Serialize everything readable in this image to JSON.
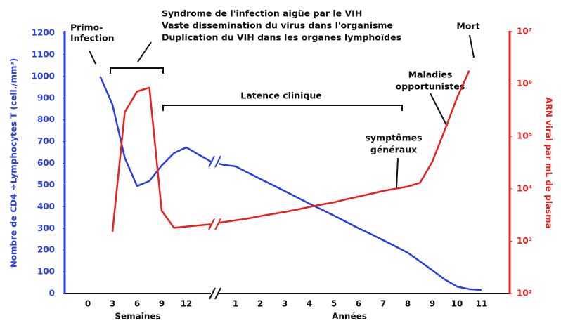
{
  "chart_data": {
    "type": "line",
    "title": [
      "Syndrome de l'infection aigüe par le VIH",
      "Vaste dissemination du virus dans l'organisme",
      "Duplication du VIH dans les organes lymphoïdes"
    ],
    "y_label": "Nombre de CD4 +Lymphocytes T (cell./mm³)",
    "y2_label": "ARN viral par mL de plasma",
    "x_group_labels": [
      "Semaines",
      "Années"
    ],
    "annotations": {
      "primo": [
        "Primo-",
        "Infection"
      ],
      "latence": "Latence clinique",
      "maladies": [
        "Maladies",
        "opportunistes"
      ],
      "symptomes": [
        "symptômes",
        "généraux"
      ],
      "mort": "Mort"
    },
    "categories": [
      "0",
      null,
      "3",
      null,
      "6",
      null,
      "9",
      null,
      "12",
      null,
      null,
      null,
      "1",
      null,
      "2",
      null,
      "3",
      null,
      "4",
      null,
      "5",
      null,
      "6",
      null,
      "7",
      null,
      "8",
      null,
      "9",
      null,
      "10",
      null,
      "11"
    ],
    "ylim": [
      0,
      1200
    ],
    "yticks": [
      0,
      100,
      200,
      300,
      400,
      500,
      600,
      700,
      800,
      900,
      1000,
      1100,
      1200
    ],
    "y2lim": [
      100,
      10000000
    ],
    "y2log": true,
    "y2ticks": [
      {
        "value": 100,
        "label": "10²"
      },
      {
        "value": 1000,
        "label": "10³"
      },
      {
        "value": 10000,
        "label": "10⁴"
      },
      {
        "value": 100000,
        "label": "10⁵"
      },
      {
        "value": 1000000,
        "label": "10⁶"
      },
      {
        "value": 10000000,
        "label": "10⁷"
      }
    ],
    "series": [
      {
        "name": "CD4",
        "color": "#2b3fe0",
        "axis": "y",
        "values": [
          null,
          1000,
          870,
          625,
          495,
          518,
          590,
          647,
          673,
          640,
          608,
          593,
          586,
          557,
          528,
          500,
          472,
          443,
          414,
          387,
          359,
          330,
          301,
          274,
          246,
          217,
          188,
          148,
          107,
          65,
          32,
          20,
          16
        ]
      },
      {
        "name": "ARN viral",
        "color": "#e8201e",
        "axis": "y2",
        "values": [
          null,
          null,
          1500,
          290000,
          720000,
          850000,
          3800,
          1800,
          1900,
          2000,
          2100,
          2300,
          2500,
          2700,
          3000,
          3300,
          3600,
          4000,
          4500,
          5000,
          5500,
          6300,
          7100,
          8000,
          9100,
          10000,
          11000,
          13000,
          33000,
          130000,
          540000,
          1800000,
          null
        ]
      }
    ]
  }
}
